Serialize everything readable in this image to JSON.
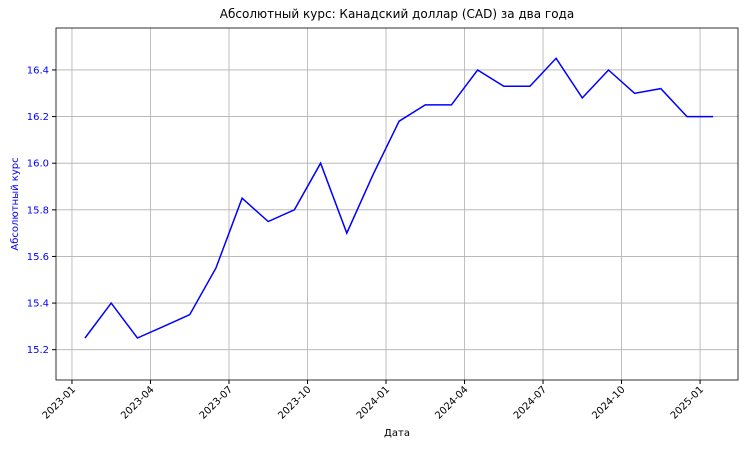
{
  "chart_data": {
    "type": "line",
    "title": "Абсолютный курс: Канадский доллар (CAD) за два года",
    "x_label": "Дата",
    "y_label": "Абсолютный курс",
    "x": [
      "2023-01",
      "2023-02",
      "2023-03",
      "2023-04",
      "2023-05",
      "2023-06",
      "2023-07",
      "2023-08",
      "2023-09",
      "2023-10",
      "2023-11",
      "2023-12",
      "2024-01",
      "2024-02",
      "2024-03",
      "2024-04",
      "2024-05",
      "2024-06",
      "2024-07",
      "2024-08",
      "2024-09",
      "2024-10",
      "2024-11",
      "2024-12",
      "2025-01"
    ],
    "series": [
      {
        "name": "CAD",
        "color": "#0000ff",
        "values": [
          15.25,
          15.4,
          15.25,
          15.3,
          15.35,
          15.55,
          15.85,
          15.75,
          15.8,
          16.0,
          15.7,
          15.95,
          16.18,
          16.25,
          16.25,
          16.4,
          16.33,
          16.33,
          16.45,
          16.28,
          16.4,
          16.3,
          16.32,
          16.2,
          16.2
        ]
      }
    ],
    "xticks": [
      "2023-01",
      "2023-04",
      "2023-07",
      "2023-10",
      "2024-01",
      "2024-04",
      "2024-07",
      "2024-10",
      "2025-01"
    ],
    "ylim": [
      15.07,
      16.58
    ],
    "yticks": [
      15.2,
      15.4,
      15.6,
      15.8,
      {
        "value": 16,
        "label": "16.0"
      },
      16.2,
      16.4
    ],
    "grid": true,
    "y_label_color": "#0000ff"
  }
}
